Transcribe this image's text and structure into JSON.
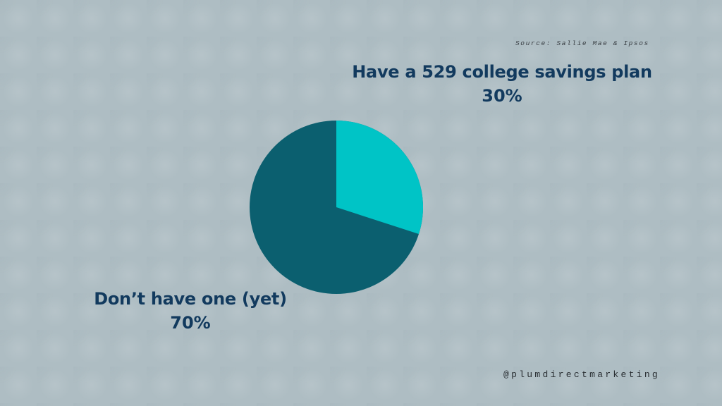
{
  "source": "Source: Sallie Mae & Ipsos",
  "handle": "@plumdirectmarketing",
  "colors": {
    "background": "#aebdc3",
    "slice_have": "#00c4c6",
    "slice_dont": "#0b5f6f",
    "label_text": "#123a5e"
  },
  "labels": {
    "have": {
      "name": "Have a 529 college savings plan",
      "pct": "30%"
    },
    "dont": {
      "name": "Don’t have one (yet)",
      "pct": "70%"
    }
  },
  "chart_data": {
    "type": "pie",
    "title": "",
    "categories": [
      "Have a 529 college savings plan",
      "Don’t have one (yet)"
    ],
    "values": [
      30,
      70
    ],
    "unit": "%",
    "colors": [
      "#00c4c6",
      "#0b5f6f"
    ],
    "start_angle": "12 o'clock, clockwise",
    "annotations": [
      "Source: Sallie Mae & Ipsos",
      "@plumdirectmarketing"
    ],
    "legend": "none (direct labels)"
  }
}
